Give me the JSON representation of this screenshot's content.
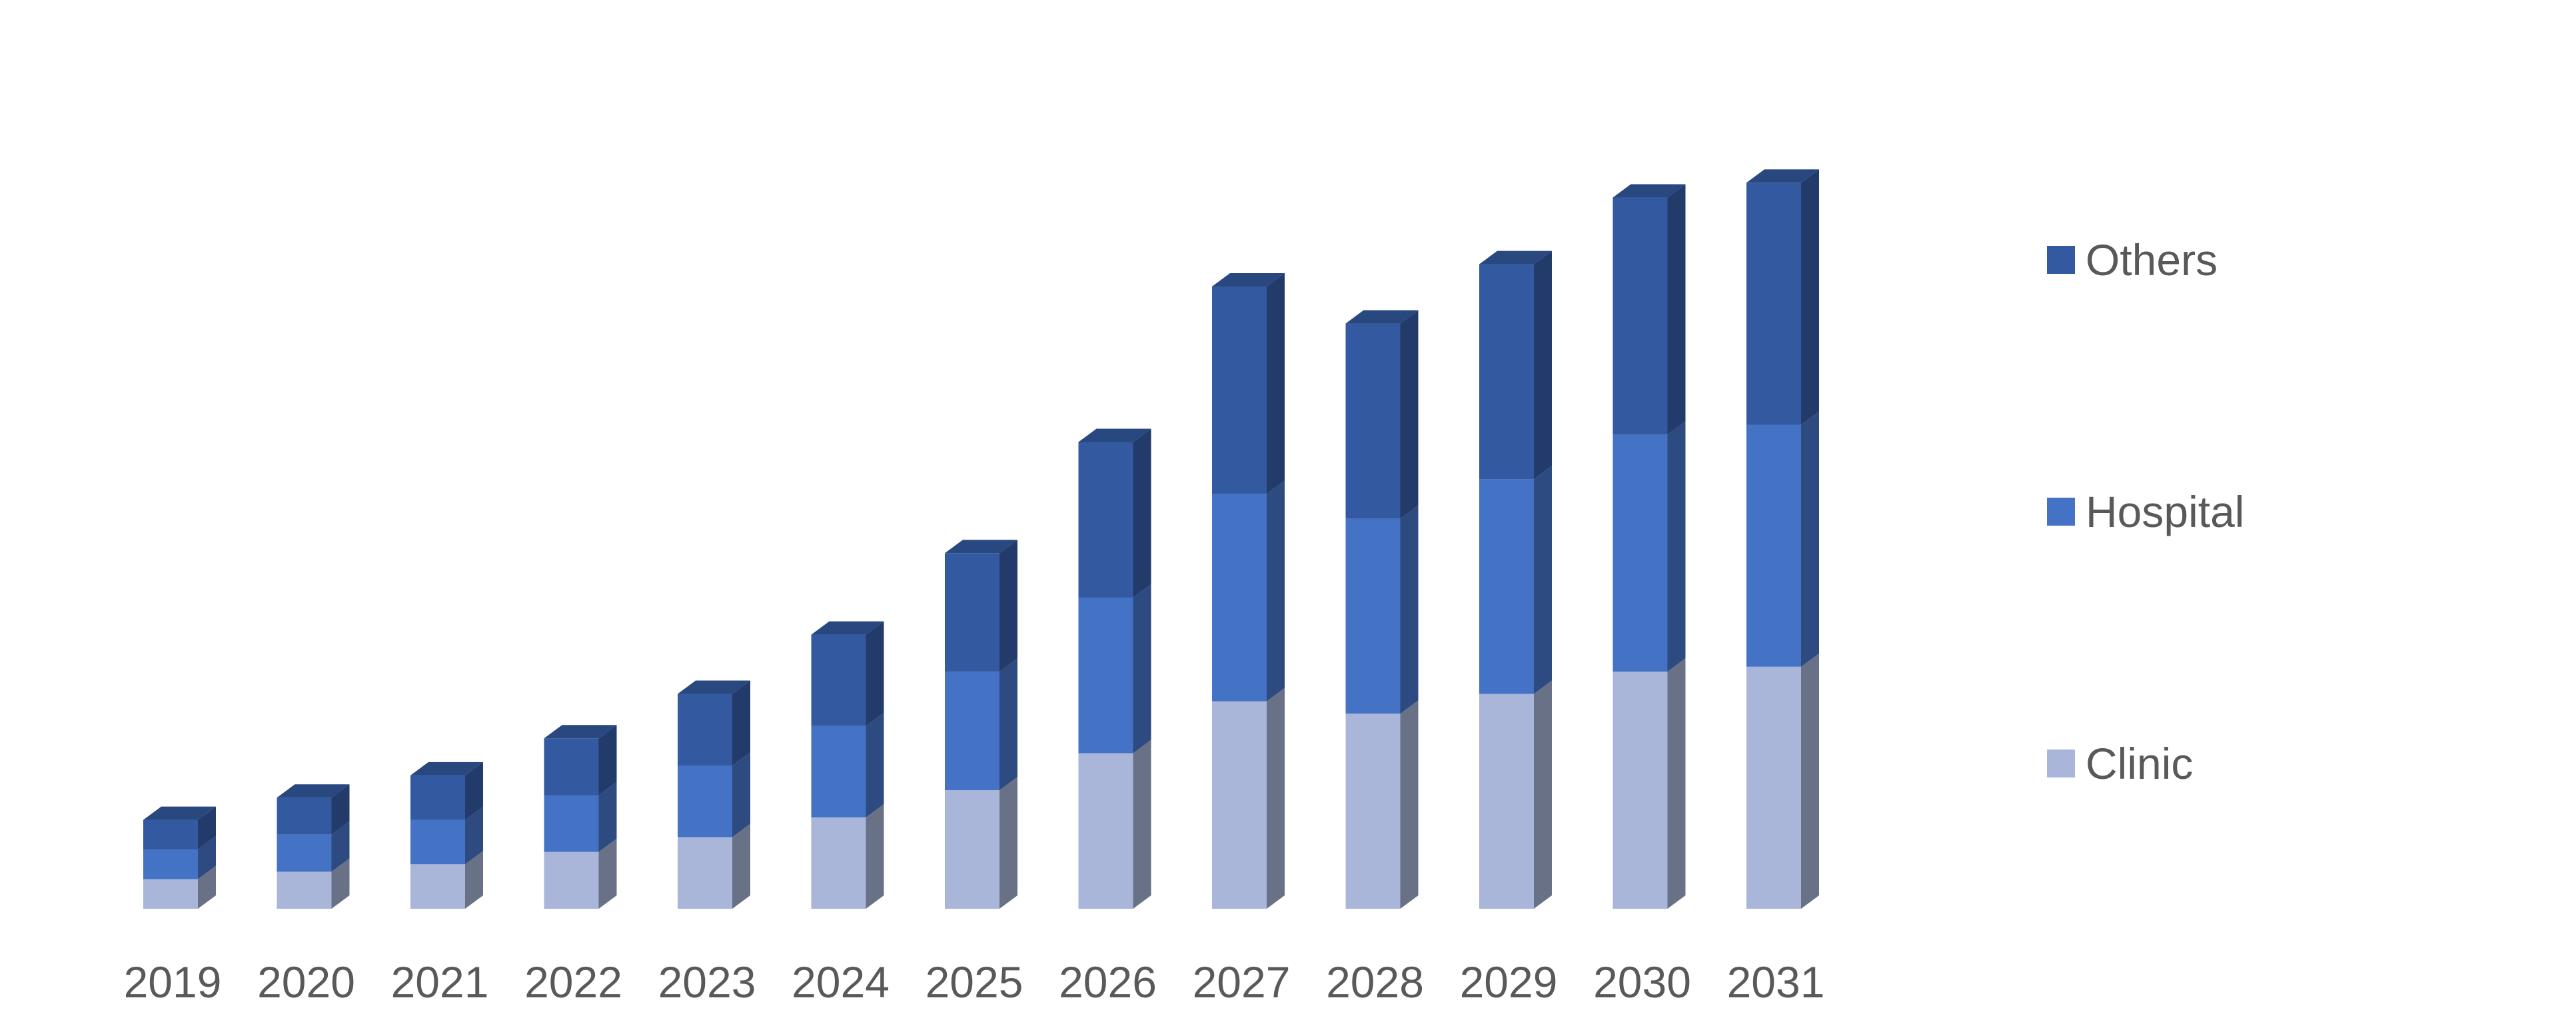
{
  "chart_data": {
    "type": "bar",
    "stacked": true,
    "style": "3d-column",
    "title": "",
    "xlabel": "",
    "ylabel": "",
    "grid": false,
    "legend_position": "right",
    "categories": [
      "2019",
      "2020",
      "2021",
      "2022",
      "2023",
      "2024",
      "2025",
      "2026",
      "2027",
      "2028",
      "2029",
      "2030",
      "2031"
    ],
    "series": [
      {
        "name": "Clinic",
        "color": "#a9b6da",
        "values": [
          0.6,
          0.75,
          0.9,
          1.15,
          1.45,
          1.85,
          2.4,
          3.15,
          4.2,
          3.95,
          4.35,
          4.8,
          4.9
        ]
      },
      {
        "name": "Hospital",
        "color": "#4472c4",
        "values": [
          0.6,
          0.75,
          0.9,
          1.15,
          1.45,
          1.85,
          2.4,
          3.15,
          4.2,
          3.95,
          4.35,
          4.8,
          4.9
        ]
      },
      {
        "name": "Others",
        "color": "#335aa0",
        "values": [
          0.6,
          0.75,
          0.9,
          1.15,
          1.45,
          1.85,
          2.4,
          3.15,
          4.2,
          3.95,
          4.35,
          4.8,
          4.9
        ]
      }
    ],
    "ylim": [
      0,
      15.5
    ],
    "legend_order": [
      "Others",
      "Hospital",
      "Clinic"
    ]
  }
}
